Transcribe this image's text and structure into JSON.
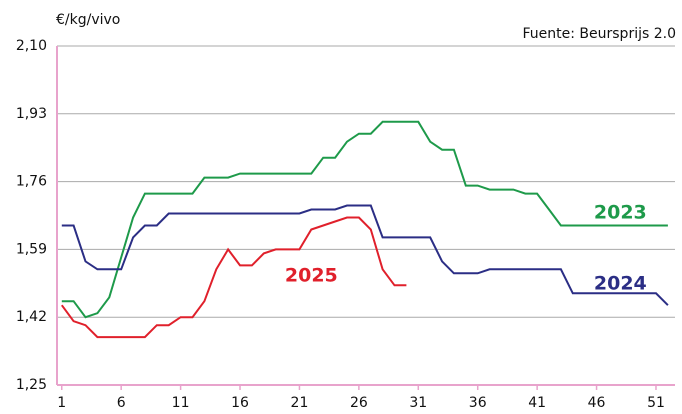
{
  "chart_data": {
    "type": "line",
    "y_axis_label": "€/kg/vivo",
    "source": "Fuente: Beursprijs 2.0",
    "x": [
      1,
      2,
      3,
      4,
      5,
      6,
      7,
      8,
      9,
      10,
      11,
      12,
      13,
      14,
      15,
      16,
      17,
      18,
      19,
      20,
      21,
      22,
      23,
      24,
      25,
      26,
      27,
      28,
      29,
      30,
      31,
      32,
      33,
      34,
      35,
      36,
      37,
      38,
      39,
      40,
      41,
      42,
      43,
      44,
      45,
      46,
      47,
      48,
      49,
      50,
      51,
      52
    ],
    "xlim": [
      0.6,
      52.6
    ],
    "xticks": [
      1,
      6,
      11,
      16,
      21,
      26,
      31,
      36,
      41,
      46,
      51
    ],
    "ylim": [
      1.25,
      2.1
    ],
    "yticks": [
      {
        "value": 1.25,
        "label": "1,25"
      },
      {
        "value": 1.42,
        "label": "1,42"
      },
      {
        "value": 1.59,
        "label": "1,59"
      },
      {
        "value": 1.76,
        "label": "1,76"
      },
      {
        "value": 1.93,
        "label": "1,93"
      },
      {
        "value": 2.1,
        "label": "2,10"
      }
    ],
    "grid": true,
    "series": [
      {
        "name": "2023",
        "color": "#1e9a4a",
        "values": [
          1.46,
          1.46,
          1.42,
          1.43,
          1.47,
          1.57,
          1.67,
          1.73,
          1.73,
          1.73,
          1.73,
          1.73,
          1.77,
          1.77,
          1.77,
          1.78,
          1.78,
          1.78,
          1.78,
          1.78,
          1.78,
          1.78,
          1.82,
          1.82,
          1.86,
          1.88,
          1.88,
          1.91,
          1.91,
          1.91,
          1.91,
          1.86,
          1.84,
          1.84,
          1.75,
          1.75,
          1.74,
          1.74,
          1.74,
          1.73,
          1.73,
          1.69,
          1.65,
          1.65,
          1.65,
          1.65,
          1.65,
          1.65,
          1.65,
          1.65,
          1.65,
          1.65
        ]
      },
      {
        "name": "2024",
        "color": "#2b2e85",
        "values": [
          1.65,
          1.65,
          1.56,
          1.54,
          1.54,
          1.54,
          1.62,
          1.65,
          1.65,
          1.68,
          1.68,
          1.68,
          1.68,
          1.68,
          1.68,
          1.68,
          1.68,
          1.68,
          1.68,
          1.68,
          1.68,
          1.69,
          1.69,
          1.69,
          1.7,
          1.7,
          1.7,
          1.62,
          1.62,
          1.62,
          1.62,
          1.62,
          1.56,
          1.53,
          1.53,
          1.53,
          1.54,
          1.54,
          1.54,
          1.54,
          1.54,
          1.54,
          1.54,
          1.48,
          1.48,
          1.48,
          1.48,
          1.48,
          1.48,
          1.48,
          1.48,
          1.45
        ]
      },
      {
        "name": "2025",
        "color": "#e0202b",
        "values": [
          1.45,
          1.41,
          1.4,
          1.37,
          1.37,
          1.37,
          1.37,
          1.37,
          1.4,
          1.4,
          1.42,
          1.42,
          1.46,
          1.54,
          1.59,
          1.55,
          1.55,
          1.58,
          1.59,
          1.59,
          1.59,
          1.64,
          1.65,
          1.66,
          1.67,
          1.67,
          1.64,
          1.54,
          1.5,
          1.5,
          null,
          null,
          null,
          null,
          null,
          null,
          null,
          null,
          null,
          null,
          null,
          null,
          null,
          null,
          null,
          null,
          null,
          null,
          null,
          null,
          null,
          null
        ]
      }
    ]
  }
}
